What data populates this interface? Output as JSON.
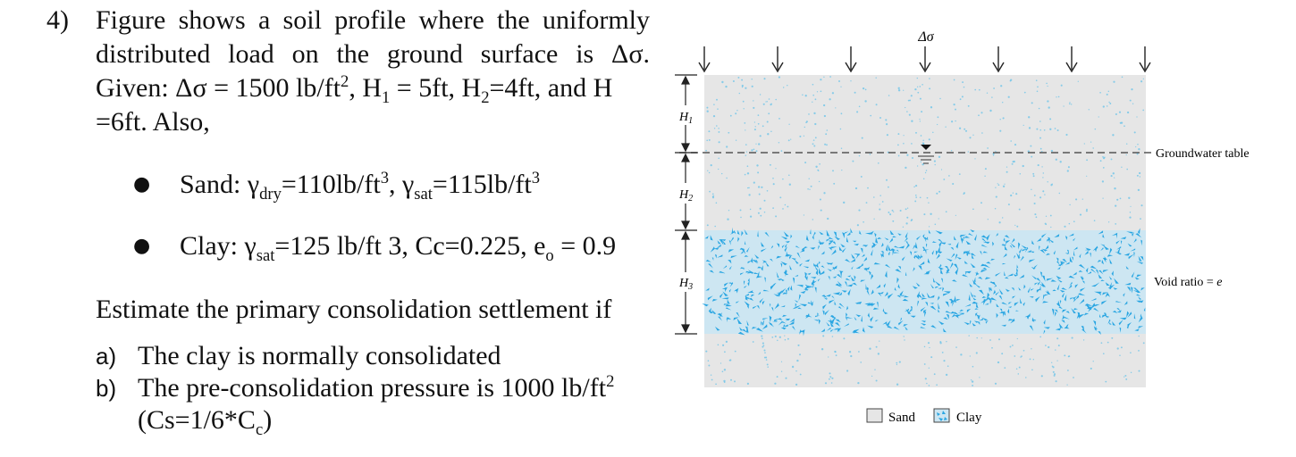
{
  "problem": {
    "number": "4)",
    "statement": {
      "p1": "Figure shows a soil profile where the uniformly distributed load on the ground surface is Δσ. Given: Δσ = 1500 lb/ft",
      "p1_sup": "2",
      "p2": ", H",
      "p2_sub": "1",
      "p3": " = 5ft, H",
      "p3_sub": "2",
      "p4": "=4ft, and H",
      "p4_sub": "3",
      "p5": "=6ft. Also,"
    },
    "sand": {
      "label": "Sand: γ",
      "sub1": "dry",
      "mid": "=110lb/ft",
      "sup1": "3",
      "mid2": ", γ",
      "sub2": "sat",
      "mid3": "=115lb/ft",
      "sup2": "3"
    },
    "clay": {
      "label": "Clay: γ",
      "sub1": "sat",
      "mid": "=125 lb/ft 3, Cc=0.225, e",
      "sub2": "o",
      "end": " = 0.9"
    },
    "estimate": "Estimate the primary consolidation settlement if",
    "options": {
      "a_label": "a)",
      "a_text": "The clay is normally consolidated",
      "b_label": "b)",
      "b_text": "The pre-consolidation pressure is 1000 lb/ft",
      "b_sup": "2",
      "c_text1": "(Cs=1/6*C",
      "c_sub": "c",
      "c_text2": ")"
    }
  },
  "figure": {
    "load_label": "Δσ",
    "h1": "H",
    "h1_sub": "1",
    "h2": "H",
    "h2_sub": "2",
    "h3": "H",
    "h3_sub": "3",
    "groundwater": "Groundwater table",
    "void_ratio_text": "Void ratio = ",
    "void_ratio_symbol": "e",
    "legend_sand": "Sand",
    "legend_clay": "Clay",
    "colors": {
      "sand": "#e6e6e6",
      "clay": "#2aa6e2",
      "sand_dots": "#6ec4e8"
    }
  }
}
